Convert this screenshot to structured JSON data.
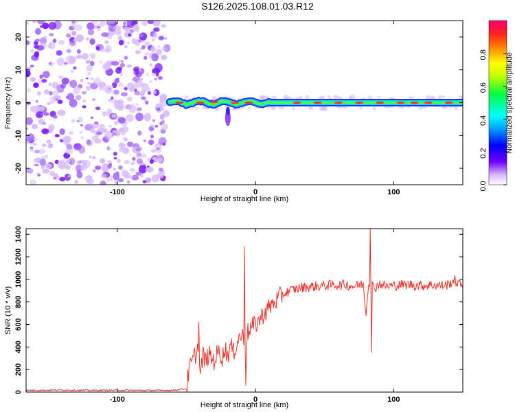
{
  "title": "S126.2025.108.01.03.R12",
  "chart_data": [
    {
      "type": "heatmap",
      "xlabel": "Height of straight line (km)",
      "ylabel": "Frequency (Hz)",
      "xlim": [
        -166,
        150
      ],
      "ylim": [
        -25,
        25
      ],
      "x_ticks": [
        -100,
        0,
        100
      ],
      "y_ticks": [
        -20,
        -10,
        0,
        10,
        20
      ],
      "colorbar": {
        "label": "Normalized spectral amplitude",
        "range": [
          0.0,
          1.0
        ],
        "ticks": [
          0.0,
          0.2,
          0.4,
          0.6,
          0.8
        ]
      },
      "features": {
        "noise_region_x": [
          -166,
          -62
        ],
        "signal_start_x": -62,
        "signal_frequency": 0
      }
    },
    {
      "type": "line",
      "xlabel": "Height of straight line (km)",
      "ylabel": "SNR (10 * v/v)",
      "xlim": [
        -166,
        150
      ],
      "ylim": [
        0,
        1450
      ],
      "x_ticks": [
        -100,
        0,
        100
      ],
      "y_ticks": [
        0,
        200,
        400,
        600,
        800,
        1000,
        1200,
        1400
      ],
      "color": "#e8302a",
      "series": [
        {
          "x": [
            -166,
            -140,
            -120,
            -100,
            -80,
            -60,
            -50,
            -48,
            -46,
            -44,
            -42,
            -40,
            -38,
            -36,
            -34,
            -32,
            -30,
            -28,
            -26,
            -24,
            -22,
            -20,
            -18,
            -16,
            -14,
            -12,
            -10,
            -8,
            -6,
            -4,
            -2,
            0,
            2,
            4,
            6,
            8,
            10,
            12,
            14,
            16,
            18,
            20,
            22,
            25,
            30,
            35,
            40,
            45,
            50,
            55,
            60,
            65,
            70,
            75,
            78,
            80,
            82,
            83,
            84,
            86,
            88,
            90,
            95,
            100,
            105,
            110,
            115,
            120,
            125,
            130,
            135,
            140,
            143,
            145,
            148,
            150
          ],
          "y": [
            15,
            18,
            15,
            17,
            15,
            16,
            30,
            200,
            260,
            320,
            390,
            150,
            320,
            280,
            330,
            300,
            280,
            330,
            360,
            310,
            380,
            330,
            410,
            350,
            420,
            480,
            510,
            450,
            520,
            560,
            580,
            600,
            630,
            660,
            700,
            720,
            750,
            780,
            800,
            820,
            850,
            870,
            880,
            900,
            920,
            930,
            935,
            940,
            945,
            950,
            950,
            955,
            940,
            950,
            960,
            700,
            1000,
            900,
            960,
            920,
            950,
            960,
            940,
            945,
            950,
            955,
            950,
            945,
            950,
            950,
            945,
            955,
            990,
            980,
            950,
            960
          ]
        }
      ],
      "spikes": [
        {
          "x": -41,
          "y": 620
        },
        {
          "x": -8,
          "y": 1290
        },
        {
          "x": -7,
          "y": 60
        },
        {
          "x": 83,
          "y": 1450
        },
        {
          "x": 84,
          "y": 350
        }
      ]
    }
  ]
}
